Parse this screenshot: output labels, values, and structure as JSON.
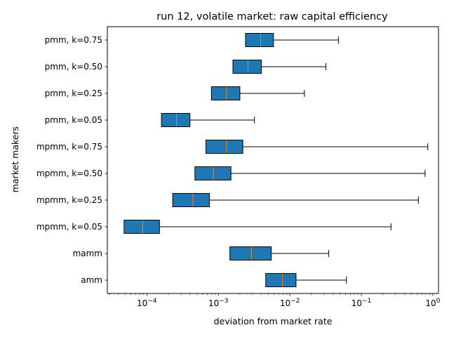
{
  "chart_data": {
    "type": "boxplot",
    "title": "run 12, volatile market: raw capital efficiency",
    "xlabel": "deviation from market rate",
    "ylabel": "market makers",
    "xscale": "log",
    "xlim": [
      2.8e-05,
      1.2
    ],
    "xticks": [
      {
        "value": 0.0001,
        "base": "10",
        "exp": "−4"
      },
      {
        "value": 0.001,
        "base": "10",
        "exp": "−3"
      },
      {
        "value": 0.01,
        "base": "10",
        "exp": "−2"
      },
      {
        "value": 0.1,
        "base": "10",
        "exp": "−1"
      },
      {
        "value": 1,
        "base": "10",
        "exp": "0"
      }
    ],
    "grid": false,
    "box_color": "#1f77b4",
    "median_color": "#ff7f0e",
    "boxes": [
      {
        "label": "pmm, k=0.75",
        "whislo": 0.0024,
        "q1": 0.0024,
        "median": 0.0039,
        "q3": 0.0059,
        "whishi": 0.048
      },
      {
        "label": "pmm, k=0.50",
        "whislo": 0.0016,
        "q1": 0.0016,
        "median": 0.0026,
        "q3": 0.004,
        "whishi": 0.032
      },
      {
        "label": "pmm, k=0.25",
        "whislo": 0.0008,
        "q1": 0.0008,
        "median": 0.0013,
        "q3": 0.002,
        "whishi": 0.016
      },
      {
        "label": "pmm, k=0.05",
        "whislo": 0.00016,
        "q1": 0.00016,
        "median": 0.00026,
        "q3": 0.0004,
        "whishi": 0.0032
      },
      {
        "label": "mpmm, k=0.75",
        "whislo": 0.00067,
        "q1": 0.00067,
        "median": 0.0013,
        "q3": 0.0022,
        "whishi": 0.85
      },
      {
        "label": "mpmm, k=0.50",
        "whislo": 0.00047,
        "q1": 0.00047,
        "median": 0.00085,
        "q3": 0.0015,
        "whishi": 0.78
      },
      {
        "label": "mpmm, k=0.25",
        "whislo": 0.00023,
        "q1": 0.00023,
        "median": 0.00044,
        "q3": 0.00075,
        "whishi": 0.63
      },
      {
        "label": "mpmm, k=0.05",
        "whislo": 4.8e-05,
        "q1": 4.8e-05,
        "median": 8.7e-05,
        "q3": 0.00015,
        "whishi": 0.26
      },
      {
        "label": "mamm",
        "whislo": 0.00145,
        "q1": 0.00145,
        "median": 0.0029,
        "q3": 0.0055,
        "whishi": 0.035
      },
      {
        "label": "amm",
        "whislo": 0.0046,
        "q1": 0.0046,
        "median": 0.0079,
        "q3": 0.0122,
        "whishi": 0.062
      }
    ]
  }
}
